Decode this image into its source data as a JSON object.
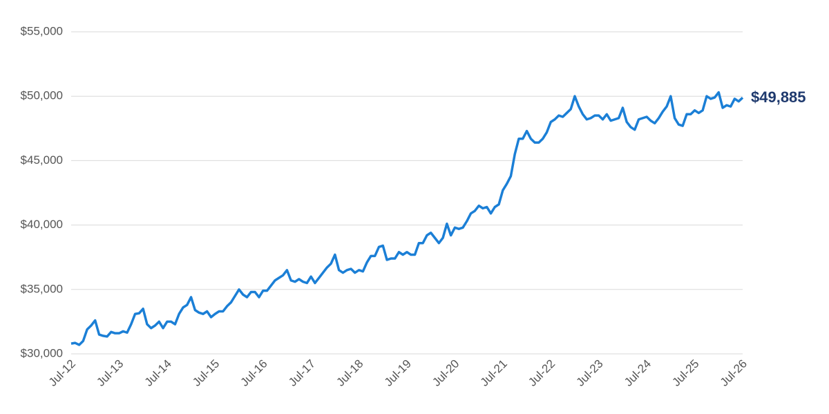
{
  "chart_data": {
    "type": "line",
    "categories": [
      "Jul-12",
      null,
      null,
      null,
      null,
      null,
      null,
      null,
      null,
      null,
      null,
      null,
      "Jul-13",
      null,
      null,
      null,
      null,
      null,
      null,
      null,
      null,
      null,
      null,
      null,
      "Jul-14",
      null,
      null,
      null,
      null,
      null,
      null,
      null,
      null,
      null,
      null,
      null,
      "Jul-15",
      null,
      null,
      null,
      null,
      null,
      null,
      null,
      null,
      null,
      null,
      null,
      "Jul-16",
      null,
      null,
      null,
      null,
      null,
      null,
      null,
      null,
      null,
      null,
      null,
      "Jul-17",
      null,
      null,
      null,
      null,
      null,
      null,
      null,
      null,
      null,
      null,
      null,
      "Jul-18",
      null,
      null,
      null,
      null,
      null,
      null,
      null,
      null,
      null,
      null,
      null,
      "Jul-19",
      null,
      null,
      null,
      null,
      null,
      null,
      null,
      null,
      null,
      null,
      null,
      "Jul-20",
      null,
      null,
      null,
      null,
      null,
      null,
      null,
      null,
      null,
      null,
      null,
      "Jul-21",
      null,
      null,
      null,
      null,
      null,
      null,
      null,
      null,
      null,
      null,
      null,
      "Jul-22",
      null,
      null,
      null,
      null,
      null,
      null,
      null,
      null,
      null,
      null,
      null,
      "Jul-23",
      null,
      null,
      null,
      null,
      null,
      null,
      null,
      null,
      null,
      null,
      null,
      "Jul-24",
      null,
      null,
      null,
      null,
      null,
      null,
      null,
      null,
      null,
      null,
      null,
      "Jul-25",
      null,
      null,
      null,
      null,
      null,
      null,
      null,
      null,
      null,
      null,
      null,
      "Jul-26"
    ],
    "values": [
      30800,
      30850,
      30700,
      31000,
      31900,
      32200,
      32600,
      31500,
      31400,
      31350,
      31700,
      31600,
      31600,
      31750,
      31650,
      32300,
      33100,
      33150,
      33500,
      32300,
      32000,
      32200,
      32500,
      32000,
      32500,
      32500,
      32300,
      33100,
      33600,
      33800,
      34400,
      33400,
      33200,
      33100,
      33300,
      32850,
      33100,
      33300,
      33300,
      33700,
      34000,
      34500,
      35000,
      34600,
      34400,
      34800,
      34800,
      34400,
      34900,
      34900,
      35300,
      35700,
      35900,
      36100,
      36500,
      35700,
      35600,
      35800,
      35600,
      35500,
      36000,
      35500,
      35900,
      36300,
      36700,
      37000,
      37700,
      36500,
      36300,
      36500,
      36600,
      36300,
      36500,
      36400,
      37100,
      37600,
      37600,
      38300,
      38400,
      37300,
      37400,
      37400,
      37900,
      37700,
      37900,
      37700,
      37700,
      38600,
      38600,
      39200,
      39400,
      39000,
      38600,
      39000,
      40100,
      39200,
      39800,
      39700,
      39800,
      40300,
      40900,
      41100,
      41500,
      41300,
      41400,
      40900,
      41400,
      41600,
      42700,
      43200,
      43800,
      45500,
      46700,
      46700,
      47300,
      46700,
      46400,
      46400,
      46700,
      47200,
      48000,
      48200,
      48500,
      48400,
      48700,
      49000,
      50000,
      49200,
      48600,
      48200,
      48300,
      48500,
      48500,
      48200,
      48600,
      48100,
      48200,
      48300,
      49100,
      48000,
      47600,
      47400,
      48200,
      48300,
      48400,
      48100,
      47900,
      48300,
      48800,
      49200,
      50000,
      48300,
      47800,
      47700,
      48600,
      48600,
      48900,
      48700,
      48900,
      50000,
      49800,
      49900,
      50300,
      49100,
      49300,
      49200,
      49800,
      49600,
      49885
    ],
    "value_labels": [
      null,
      null,
      null,
      null,
      null,
      null,
      null,
      null,
      null,
      null,
      null,
      null,
      null,
      null,
      null,
      null,
      null,
      null,
      null,
      null,
      null,
      null,
      null,
      null,
      null,
      null,
      null,
      null,
      null,
      null,
      null,
      null,
      null,
      null,
      null,
      null,
      null,
      null,
      null,
      null,
      null,
      null,
      null,
      null,
      null,
      null,
      null,
      null,
      null,
      null,
      null,
      null,
      null,
      null,
      null,
      null,
      null,
      null,
      null,
      null,
      null,
      null,
      null,
      null,
      null,
      null,
      null,
      null,
      null,
      null,
      null,
      null,
      null,
      null,
      null,
      null,
      null,
      null,
      null,
      null,
      null,
      null,
      null,
      null,
      null,
      null,
      null,
      null,
      null,
      null,
      null,
      null,
      null,
      null,
      null,
      null,
      null,
      null,
      null,
      null,
      null,
      null,
      null,
      null,
      null,
      null,
      null,
      null,
      null,
      null,
      null,
      null,
      null,
      null,
      null,
      null,
      null,
      null,
      null,
      null,
      null,
      null,
      null,
      null,
      null,
      null,
      null,
      null,
      null,
      null,
      null,
      null,
      null,
      null,
      null,
      null,
      null,
      null,
      null,
      null,
      null,
      null,
      null,
      null,
      null,
      null,
      null,
      null,
      null,
      null,
      null,
      null,
      null,
      null,
      null,
      null,
      null,
      null,
      null,
      null,
      null,
      null,
      null,
      null,
      null,
      null,
      null,
      null,
      "$49,885"
    ],
    "color": "#1b7fd6",
    "label_color": "#1f3a6e",
    "ylim": [
      30000,
      55000
    ],
    "yticks": [
      {
        "value": 30000,
        "label": "$30,000"
      },
      {
        "value": 35000,
        "label": "$35,000"
      },
      {
        "value": 40000,
        "label": "$40,000"
      },
      {
        "value": 45000,
        "label": "$45,000"
      },
      {
        "value": 50000,
        "label": "$50,000"
      },
      {
        "value": 55000,
        "label": "$55,000"
      }
    ],
    "grid": true
  }
}
